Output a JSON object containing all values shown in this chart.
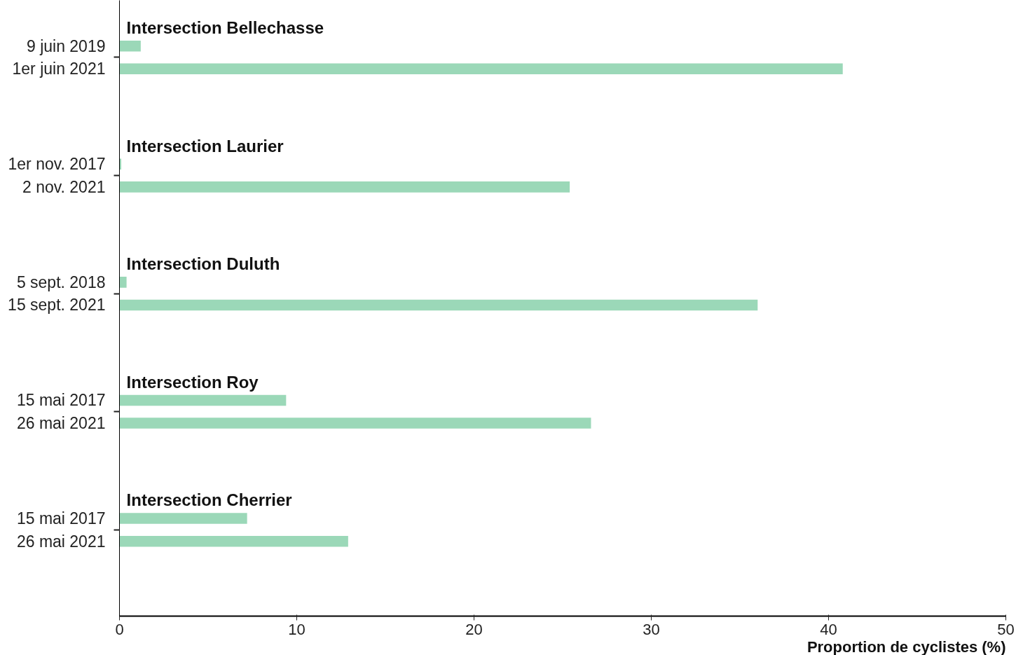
{
  "chart_data": {
    "type": "bar",
    "orientation": "horizontal",
    "categories": [
      "9 juin 2019",
      "1er juin 2021",
      "1er nov. 2017",
      "2 nov. 2021",
      "5 sept. 2018",
      "15 sept. 2021",
      "15 mai 2017",
      "26 mai 2021",
      "15 mai 2017",
      "26 mai 2021"
    ],
    "values": [
      1.2,
      40.8,
      0.1,
      25.4,
      0.4,
      36.0,
      9.4,
      26.6,
      7.2,
      12.9
    ],
    "color": "#9bd8b8",
    "xlim": [
      0,
      50
    ],
    "xticks": [
      0,
      10,
      20,
      30,
      40,
      50
    ],
    "xlabel": "Proportion de cyclistes (%)",
    "annotations": [
      "Intersection Bellechasse",
      "Intersection Laurier",
      "Intersection Duluth",
      "Intersection Roy",
      "Intersection Cherrier"
    ]
  }
}
